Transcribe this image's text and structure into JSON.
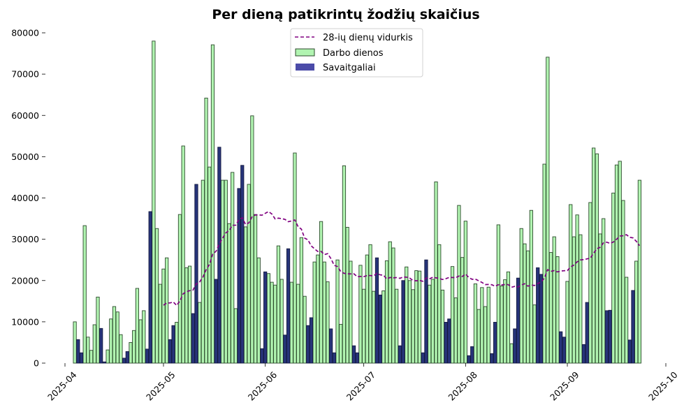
{
  "chart_data": {
    "type": "bar",
    "title": "Per dieną patikrintų žodžių skaičius",
    "xlabel": "",
    "ylabel": "",
    "ylim": [
      0,
      80000
    ],
    "xlim": [
      "2025-04-01",
      "2025-10-01"
    ],
    "y_ticks": [
      "0",
      "10000",
      "20000",
      "30000",
      "40000",
      "50000",
      "60000",
      "70000",
      "80000"
    ],
    "x_ticks": [
      "2025-04",
      "2025-05",
      "2025-06",
      "2025-07",
      "2025-08",
      "2025-09",
      "2025-10"
    ],
    "grid": false,
    "legend_position": "top-center",
    "colors": {
      "workdays": "#b1f4b1",
      "workdays_edge": "#2c4a2c",
      "weekends": "#4b4ba8",
      "weekends_bar": "#27347a",
      "rolling": "#800080"
    },
    "series": [
      {
        "name": "Darbo dienos",
        "kind": "bar",
        "points": [
          [
            "2025-04-04",
            10000
          ],
          [
            "2025-04-07",
            33300
          ],
          [
            "2025-04-08",
            6300
          ],
          [
            "2025-04-09",
            3100
          ],
          [
            "2025-04-10",
            9300
          ],
          [
            "2025-04-11",
            16000
          ],
          [
            "2025-04-14",
            3200
          ],
          [
            "2025-04-15",
            10700
          ],
          [
            "2025-04-16",
            13700
          ],
          [
            "2025-04-17",
            12400
          ],
          [
            "2025-04-18",
            6900
          ],
          [
            "2025-04-21",
            5000
          ],
          [
            "2025-04-22",
            7900
          ],
          [
            "2025-04-23",
            18100
          ],
          [
            "2025-04-24",
            10500
          ],
          [
            "2025-04-25",
            12700
          ],
          [
            "2025-04-28",
            78000
          ],
          [
            "2025-04-29",
            32600
          ],
          [
            "2025-04-30",
            19100
          ],
          [
            "2025-05-01",
            22800
          ],
          [
            "2025-05-02",
            25500
          ],
          [
            "2025-05-05",
            9900
          ],
          [
            "2025-05-06",
            36000
          ],
          [
            "2025-05-07",
            52600
          ],
          [
            "2025-05-08",
            23100
          ],
          [
            "2025-05-09",
            23500
          ],
          [
            "2025-05-12",
            14700
          ],
          [
            "2025-05-13",
            44300
          ],
          [
            "2025-05-14",
            64200
          ],
          [
            "2025-05-15",
            47500
          ],
          [
            "2025-05-16",
            77100
          ],
          [
            "2025-05-19",
            44300
          ],
          [
            "2025-05-20",
            44300
          ],
          [
            "2025-05-21",
            33800
          ],
          [
            "2025-05-22",
            46200
          ],
          [
            "2025-05-23",
            13200
          ],
          [
            "2025-05-26",
            33000
          ],
          [
            "2025-05-27",
            43300
          ],
          [
            "2025-05-28",
            59900
          ],
          [
            "2025-05-29",
            36000
          ],
          [
            "2025-05-30",
            25500
          ],
          [
            "2025-06-02",
            21700
          ],
          [
            "2025-06-03",
            19600
          ],
          [
            "2025-06-04",
            18900
          ],
          [
            "2025-06-05",
            28400
          ],
          [
            "2025-06-06",
            20300
          ],
          [
            "2025-06-09",
            19600
          ],
          [
            "2025-06-10",
            50900
          ],
          [
            "2025-06-11",
            19100
          ],
          [
            "2025-06-12",
            30400
          ],
          [
            "2025-06-13",
            16200
          ],
          [
            "2025-06-16",
            24500
          ],
          [
            "2025-06-17",
            26200
          ],
          [
            "2025-06-18",
            34300
          ],
          [
            "2025-06-19",
            24500
          ],
          [
            "2025-06-20",
            19700
          ],
          [
            "2025-06-23",
            25000
          ],
          [
            "2025-06-24",
            9400
          ],
          [
            "2025-06-25",
            47800
          ],
          [
            "2025-06-26",
            32900
          ],
          [
            "2025-06-27",
            24700
          ],
          [
            "2025-06-30",
            23700
          ],
          [
            "2025-07-01",
            17900
          ],
          [
            "2025-07-02",
            26200
          ],
          [
            "2025-07-03",
            28700
          ],
          [
            "2025-07-04",
            17400
          ],
          [
            "2025-07-07",
            17500
          ],
          [
            "2025-07-08",
            24800
          ],
          [
            "2025-07-09",
            29400
          ],
          [
            "2025-07-10",
            27900
          ],
          [
            "2025-07-11",
            17900
          ],
          [
            "2025-07-14",
            23300
          ],
          [
            "2025-07-15",
            20000
          ],
          [
            "2025-07-16",
            17800
          ],
          [
            "2025-07-17",
            22400
          ],
          [
            "2025-07-18",
            22300
          ],
          [
            "2025-07-21",
            18900
          ],
          [
            "2025-07-22",
            20300
          ],
          [
            "2025-07-23",
            43900
          ],
          [
            "2025-07-24",
            28700
          ],
          [
            "2025-07-25",
            17700
          ],
          [
            "2025-07-28",
            23400
          ],
          [
            "2025-07-29",
            15800
          ],
          [
            "2025-07-30",
            38200
          ],
          [
            "2025-07-31",
            25600
          ],
          [
            "2025-08-01",
            34400
          ],
          [
            "2025-08-04",
            19200
          ],
          [
            "2025-08-05",
            13000
          ],
          [
            "2025-08-06",
            18300
          ],
          [
            "2025-08-07",
            13700
          ],
          [
            "2025-08-08",
            18400
          ],
          [
            "2025-08-11",
            33500
          ],
          [
            "2025-08-12",
            18700
          ],
          [
            "2025-08-13",
            20200
          ],
          [
            "2025-08-14",
            22100
          ],
          [
            "2025-08-15",
            4700
          ],
          [
            "2025-08-18",
            32600
          ],
          [
            "2025-08-19",
            28900
          ],
          [
            "2025-08-20",
            27200
          ],
          [
            "2025-08-21",
            37000
          ],
          [
            "2025-08-22",
            14100
          ],
          [
            "2025-08-25",
            48200
          ],
          [
            "2025-08-26",
            74100
          ],
          [
            "2025-08-27",
            26800
          ],
          [
            "2025-08-28",
            30600
          ],
          [
            "2025-08-29",
            25800
          ],
          [
            "2025-09-01",
            19800
          ],
          [
            "2025-09-02",
            38400
          ],
          [
            "2025-09-03",
            30600
          ],
          [
            "2025-09-04",
            35900
          ],
          [
            "2025-09-05",
            31100
          ],
          [
            "2025-09-08",
            38900
          ],
          [
            "2025-09-09",
            52100
          ],
          [
            "2025-09-10",
            50700
          ],
          [
            "2025-09-11",
            31300
          ],
          [
            "2025-09-12",
            35000
          ],
          [
            "2025-09-15",
            41200
          ],
          [
            "2025-09-16",
            48000
          ],
          [
            "2025-09-17",
            48900
          ],
          [
            "2025-09-18",
            39400
          ],
          [
            "2025-09-19",
            20800
          ],
          [
            "2025-09-22",
            24700
          ],
          [
            "2025-09-23",
            44300
          ]
        ]
      },
      {
        "name": "Savaitgaliai",
        "kind": "bar",
        "points": [
          [
            "2025-04-05",
            5700
          ],
          [
            "2025-04-06",
            2500
          ],
          [
            "2025-04-12",
            8400
          ],
          [
            "2025-04-13",
            300
          ],
          [
            "2025-04-19",
            1200
          ],
          [
            "2025-04-20",
            2800
          ],
          [
            "2025-04-26",
            3400
          ],
          [
            "2025-04-27",
            36700
          ],
          [
            "2025-05-03",
            5700
          ],
          [
            "2025-05-04",
            9100
          ],
          [
            "2025-05-10",
            12000
          ],
          [
            "2025-05-11",
            43300
          ],
          [
            "2025-05-17",
            20300
          ],
          [
            "2025-05-18",
            52300
          ],
          [
            "2025-05-24",
            42300
          ],
          [
            "2025-05-25",
            47900
          ],
          [
            "2025-05-31",
            3500
          ],
          [
            "2025-06-01",
            22100
          ],
          [
            "2025-06-07",
            6800
          ],
          [
            "2025-06-08",
            27700
          ],
          [
            "2025-06-14",
            9100
          ],
          [
            "2025-06-15",
            11000
          ],
          [
            "2025-06-21",
            8300
          ],
          [
            "2025-06-22",
            2500
          ],
          [
            "2025-06-28",
            4200
          ],
          [
            "2025-06-29",
            2500
          ],
          [
            "2025-07-05",
            25500
          ],
          [
            "2025-07-06",
            16500
          ],
          [
            "2025-07-12",
            4200
          ],
          [
            "2025-07-13",
            20000
          ],
          [
            "2025-07-19",
            2500
          ],
          [
            "2025-07-20",
            25000
          ],
          [
            "2025-07-26",
            9900
          ],
          [
            "2025-07-27",
            10700
          ],
          [
            "2025-08-02",
            1800
          ],
          [
            "2025-08-03",
            4000
          ],
          [
            "2025-08-09",
            2300
          ],
          [
            "2025-08-10",
            9900
          ],
          [
            "2025-08-16",
            8300
          ],
          [
            "2025-08-17",
            20600
          ],
          [
            "2025-08-23",
            23100
          ],
          [
            "2025-08-24",
            21500
          ],
          [
            "2025-08-30",
            7600
          ],
          [
            "2025-08-31",
            6300
          ],
          [
            "2025-09-06",
            4500
          ],
          [
            "2025-09-07",
            14700
          ],
          [
            "2025-09-13",
            12700
          ],
          [
            "2025-09-14",
            12800
          ],
          [
            "2025-09-20",
            5600
          ],
          [
            "2025-09-21",
            17600
          ]
        ]
      },
      {
        "name": "28-ių dienų vidurkis",
        "kind": "line",
        "window_days": 28
      }
    ]
  }
}
